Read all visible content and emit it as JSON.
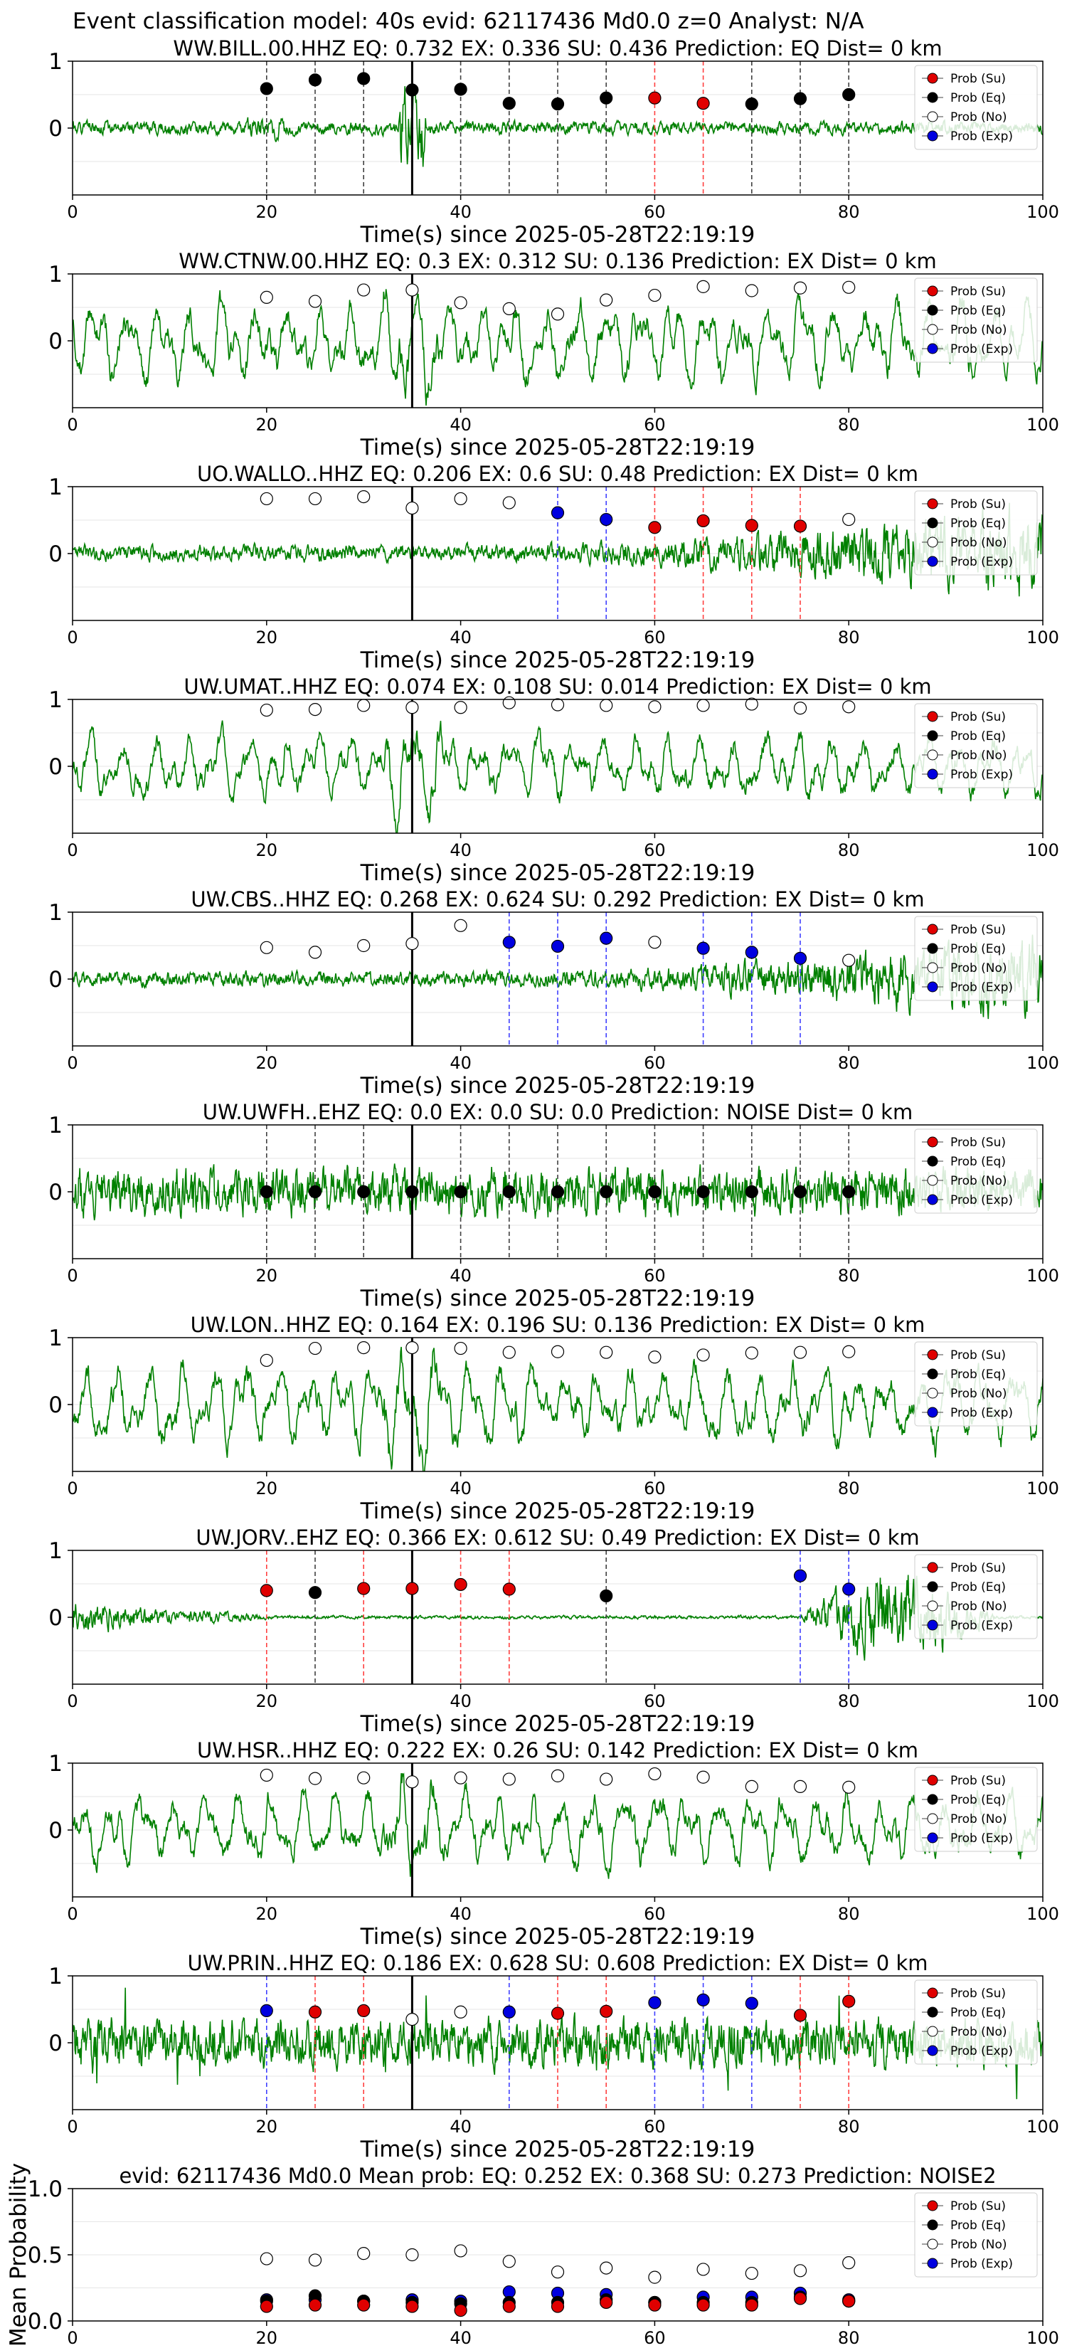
{
  "figure_title": "Event classification model: 40s evid: 62117436 Md0.0 z=0 Analyst: N/A",
  "colors": {
    "trace": "#008000",
    "su": "#e00000",
    "eq": "#000000",
    "no": "#ffffff",
    "exp": "#0000e0",
    "eq_line": "#404040",
    "su_line": "#ff4040",
    "exp_line": "#4040ff",
    "axis": "#000000",
    "grid": "#e6e6e6"
  },
  "legend": [
    "Prob (Su)",
    "Prob (Eq)",
    "Prob (No)",
    "Prob (Exp)"
  ],
  "chart_data": [
    {
      "type": "line",
      "title": "WW.BILL.00.HHZ   EQ: 0.732  EX: 0.336  SU: 0.436   Prediction: EQ    Dist= 0 km",
      "xlabel": "Time(s) since 2025-05-28T22:19:19",
      "xlim": [
        0,
        100
      ],
      "ylim": [
        -1,
        1
      ],
      "xticks": [
        0,
        20,
        40,
        60,
        80,
        100
      ],
      "yticks": [
        1,
        0
      ],
      "pick_time": 35,
      "trace_style": "spiky",
      "trace_amp": 0.17,
      "trace_seed": 1,
      "windows": [
        20,
        25,
        30,
        35,
        40,
        45,
        50,
        55,
        60,
        65,
        70,
        75,
        80
      ],
      "classes": [
        "eq",
        "eq",
        "eq",
        "eq",
        "eq",
        "eq",
        "eq",
        "eq",
        "su",
        "su",
        "eq",
        "eq",
        "eq"
      ],
      "probs": [
        0.59,
        0.72,
        0.74,
        0.57,
        0.58,
        0.37,
        0.36,
        0.45,
        0.45,
        0.37,
        0.36,
        0.44,
        0.5
      ]
    },
    {
      "type": "line",
      "title": "WW.CTNW.00.HHZ   EQ: 0.3  EX: 0.312  SU: 0.136   Prediction: EX    Dist= 0 km",
      "xlabel": "Time(s) since 2025-05-28T22:19:19",
      "xlim": [
        0,
        100
      ],
      "ylim": [
        -1,
        1
      ],
      "xticks": [
        0,
        20,
        40,
        60,
        80,
        100
      ],
      "yticks": [
        1,
        0
      ],
      "pick_time": 35,
      "trace_style": "wavy",
      "trace_amp": 0.6,
      "trace_seed": 2,
      "windows": [
        20,
        25,
        30,
        35,
        40,
        45,
        50,
        55,
        60,
        65,
        70,
        75,
        80
      ],
      "classes": [
        "no",
        "no",
        "no",
        "no",
        "no",
        "no",
        "no",
        "no",
        "no",
        "no",
        "no",
        "no",
        "no"
      ],
      "probs": [
        0.65,
        0.59,
        0.76,
        0.76,
        0.57,
        0.48,
        0.4,
        0.61,
        0.68,
        0.81,
        0.75,
        0.79,
        0.8
      ]
    },
    {
      "type": "line",
      "title": "UO.WALLO..HHZ   EQ: 0.206  EX: 0.6  SU: 0.48   Prediction: EX    Dist= 0 km",
      "xlabel": "Time(s) since 2025-05-28T22:19:19",
      "xlim": [
        0,
        100
      ],
      "ylim": [
        -1,
        1
      ],
      "xticks": [
        0,
        20,
        40,
        60,
        80,
        100
      ],
      "yticks": [
        1,
        0
      ],
      "pick_time": 35,
      "trace_style": "growing",
      "trace_amp": 0.5,
      "trace_seed": 3,
      "windows": [
        20,
        25,
        30,
        35,
        40,
        45,
        50,
        55,
        60,
        65,
        70,
        75,
        80
      ],
      "classes": [
        "no",
        "no",
        "no",
        "no",
        "no",
        "no",
        "exp",
        "exp",
        "su",
        "su",
        "su",
        "su",
        "no"
      ],
      "probs": [
        0.82,
        0.82,
        0.85,
        0.68,
        0.82,
        0.76,
        0.61,
        0.51,
        0.39,
        0.49,
        0.42,
        0.41,
        0.51
      ]
    },
    {
      "type": "line",
      "title": "UW.UMAT..HHZ   EQ: 0.074  EX: 0.108  SU: 0.014   Prediction: EX    Dist= 0 km",
      "xlabel": "Time(s) since 2025-05-28T22:19:19",
      "xlim": [
        0,
        100
      ],
      "ylim": [
        -1,
        1
      ],
      "xticks": [
        0,
        20,
        40,
        60,
        80,
        100
      ],
      "yticks": [
        1,
        0
      ],
      "pick_time": 35,
      "trace_style": "wavy",
      "trace_amp": 0.5,
      "trace_seed": 4,
      "windows": [
        20,
        25,
        30,
        35,
        40,
        45,
        50,
        55,
        60,
        65,
        70,
        75,
        80
      ],
      "classes": [
        "no",
        "no",
        "no",
        "no",
        "no",
        "no",
        "no",
        "no",
        "no",
        "no",
        "no",
        "no",
        "no"
      ],
      "probs": [
        0.84,
        0.85,
        0.91,
        0.88,
        0.88,
        0.95,
        0.92,
        0.91,
        0.89,
        0.91,
        0.93,
        0.87,
        0.89
      ]
    },
    {
      "type": "line",
      "title": "UW.CBS..HHZ   EQ: 0.268  EX: 0.624  SU: 0.292   Prediction: EX    Dist= 0 km",
      "xlabel": "Time(s) since 2025-05-28T22:19:19",
      "xlim": [
        0,
        100
      ],
      "ylim": [
        -1,
        1
      ],
      "xticks": [
        0,
        20,
        40,
        60,
        80,
        100
      ],
      "yticks": [
        1,
        0
      ],
      "pick_time": 35,
      "trace_style": "growing",
      "trace_amp": 0.45,
      "trace_seed": 5,
      "windows": [
        20,
        25,
        30,
        35,
        40,
        45,
        50,
        55,
        60,
        65,
        70,
        75,
        80
      ],
      "classes": [
        "no",
        "no",
        "no",
        "no",
        "no",
        "exp",
        "exp",
        "exp",
        "no",
        "exp",
        "exp",
        "exp",
        "no"
      ],
      "probs": [
        0.47,
        0.4,
        0.5,
        0.53,
        0.8,
        0.55,
        0.49,
        0.61,
        0.55,
        0.46,
        0.4,
        0.31,
        0.28
      ]
    },
    {
      "type": "line",
      "title": "UW.UWFH..EHZ   EQ: 0.0  EX: 0.0  SU: 0.0   Prediction: NOISE    Dist= 0 km",
      "xlabel": "Time(s) since 2025-05-28T22:19:19",
      "xlim": [
        0,
        100
      ],
      "ylim": [
        -1,
        1
      ],
      "xticks": [
        0,
        20,
        40,
        60,
        80,
        100
      ],
      "yticks": [
        1,
        0
      ],
      "pick_time": 35,
      "trace_style": "noise",
      "trace_amp": 0.35,
      "trace_seed": 6,
      "windows": [
        20,
        25,
        30,
        35,
        40,
        45,
        50,
        55,
        60,
        65,
        70,
        75,
        80
      ],
      "classes": [
        "eq",
        "eq",
        "eq",
        "eq",
        "eq",
        "eq",
        "eq",
        "eq",
        "eq",
        "eq",
        "eq",
        "eq",
        "eq"
      ],
      "probs": [
        0,
        0,
        0,
        0,
        0,
        0,
        0,
        0,
        0,
        0,
        0,
        0,
        0
      ]
    },
    {
      "type": "line",
      "title": "UW.LON..HHZ   EQ: 0.164  EX: 0.196  SU: 0.136   Prediction: EX    Dist= 0 km",
      "xlabel": "Time(s) since 2025-05-28T22:19:19",
      "xlim": [
        0,
        100
      ],
      "ylim": [
        -1,
        1
      ],
      "xticks": [
        0,
        20,
        40,
        60,
        80,
        100
      ],
      "yticks": [
        1,
        0
      ],
      "pick_time": 35,
      "trace_style": "wavy",
      "trace_amp": 0.6,
      "trace_seed": 7,
      "windows": [
        20,
        25,
        30,
        35,
        40,
        45,
        50,
        55,
        60,
        65,
        70,
        75,
        80
      ],
      "classes": [
        "no",
        "no",
        "no",
        "no",
        "no",
        "no",
        "no",
        "no",
        "no",
        "no",
        "no",
        "no",
        "no"
      ],
      "probs": [
        0.66,
        0.84,
        0.85,
        0.85,
        0.84,
        0.78,
        0.79,
        0.78,
        0.71,
        0.74,
        0.77,
        0.78,
        0.79
      ]
    },
    {
      "type": "line",
      "title": "UW.JORV..EHZ   EQ: 0.366  EX: 0.612  SU: 0.49   Prediction: EX    Dist= 0 km",
      "xlabel": "Time(s) since 2025-05-28T22:19:19",
      "xlim": [
        0,
        100
      ],
      "ylim": [
        -1,
        1
      ],
      "xticks": [
        0,
        20,
        40,
        60,
        80,
        100
      ],
      "yticks": [
        1,
        0
      ],
      "pick_time": 35,
      "trace_style": "burst",
      "trace_amp": 0.45,
      "trace_seed": 8,
      "windows": [
        20,
        25,
        30,
        35,
        40,
        45,
        55,
        75,
        80
      ],
      "classes": [
        "su",
        "eq",
        "su",
        "su",
        "su",
        "su",
        "eq",
        "exp",
        "exp"
      ],
      "probs": [
        0.4,
        0.37,
        0.43,
        0.43,
        0.49,
        0.42,
        0.32,
        0.62,
        0.42
      ]
    },
    {
      "type": "line",
      "title": "UW.HSR..HHZ   EQ: 0.222  EX: 0.26  SU: 0.142   Prediction: EX    Dist= 0 km",
      "xlabel": "Time(s) since 2025-05-28T22:19:19",
      "xlim": [
        0,
        100
      ],
      "ylim": [
        -1,
        1
      ],
      "xticks": [
        0,
        20,
        40,
        60,
        80,
        100
      ],
      "yticks": [
        1,
        0
      ],
      "pick_time": 35,
      "trace_style": "wavy",
      "trace_amp": 0.55,
      "trace_seed": 9,
      "windows": [
        20,
        25,
        30,
        35,
        40,
        45,
        50,
        55,
        60,
        65,
        70,
        75,
        80
      ],
      "classes": [
        "no",
        "no",
        "no",
        "no",
        "no",
        "no",
        "no",
        "no",
        "no",
        "no",
        "no",
        "no",
        "no"
      ],
      "probs": [
        0.82,
        0.77,
        0.78,
        0.72,
        0.78,
        0.76,
        0.81,
        0.76,
        0.84,
        0.79,
        0.65,
        0.65,
        0.64
      ]
    },
    {
      "type": "line",
      "title": "UW.PRIN..HHZ   EQ: 0.186  EX: 0.628  SU: 0.608   Prediction: EX    Dist= 0 km",
      "xlabel": "Time(s) since 2025-05-28T22:19:19",
      "xlim": [
        0,
        100
      ],
      "ylim": [
        -1,
        1
      ],
      "xticks": [
        0,
        20,
        40,
        60,
        80,
        100
      ],
      "yticks": [
        1,
        0
      ],
      "pick_time": 35,
      "trace_style": "noisy",
      "trace_amp": 0.35,
      "trace_seed": 10,
      "windows": [
        20,
        25,
        30,
        35,
        40,
        45,
        50,
        55,
        60,
        65,
        70,
        75,
        80
      ],
      "classes": [
        "exp",
        "su",
        "su",
        "no",
        "no",
        "exp",
        "su",
        "su",
        "exp",
        "exp",
        "exp",
        "su",
        "su"
      ],
      "probs": [
        0.48,
        0.46,
        0.48,
        0.35,
        0.46,
        0.46,
        0.44,
        0.47,
        0.6,
        0.64,
        0.59,
        0.41,
        0.62
      ]
    },
    {
      "type": "scatter",
      "title": "evid: 62117436  Md0.0   Mean prob:   EQ: 0.252  EX: 0.368  SU: 0.273   Prediction: NOISE2",
      "ylabel": "Mean Probability",
      "xlim": [
        0,
        100
      ],
      "ylim": [
        0,
        1
      ],
      "xticks": [
        0,
        20,
        40,
        60,
        80,
        100
      ],
      "yticks": [
        "1.0",
        "0.5",
        "0.0"
      ],
      "x": [
        20,
        25,
        30,
        35,
        40,
        45,
        50,
        55,
        60,
        65,
        70,
        75,
        80
      ],
      "series": [
        {
          "name": "Prob (No)",
          "key": "no",
          "values": [
            0.47,
            0.46,
            0.51,
            0.5,
            0.53,
            0.45,
            0.37,
            0.4,
            0.33,
            0.39,
            0.36,
            0.38,
            0.44
          ]
        },
        {
          "name": "Prob (Exp)",
          "key": "exp",
          "values": [
            0.16,
            0.16,
            0.15,
            0.16,
            0.15,
            0.22,
            0.21,
            0.2,
            0.14,
            0.18,
            0.18,
            0.21,
            0.16
          ]
        },
        {
          "name": "Prob (Eq)",
          "key": "eq",
          "values": [
            0.15,
            0.19,
            0.15,
            0.14,
            0.13,
            0.14,
            0.14,
            0.16,
            0.14,
            0.14,
            0.14,
            0.18,
            0.15
          ]
        },
        {
          "name": "Prob (Su)",
          "key": "su",
          "values": [
            0.11,
            0.12,
            0.12,
            0.11,
            0.08,
            0.11,
            0.11,
            0.14,
            0.12,
            0.12,
            0.12,
            0.17,
            0.15
          ]
        }
      ]
    }
  ]
}
